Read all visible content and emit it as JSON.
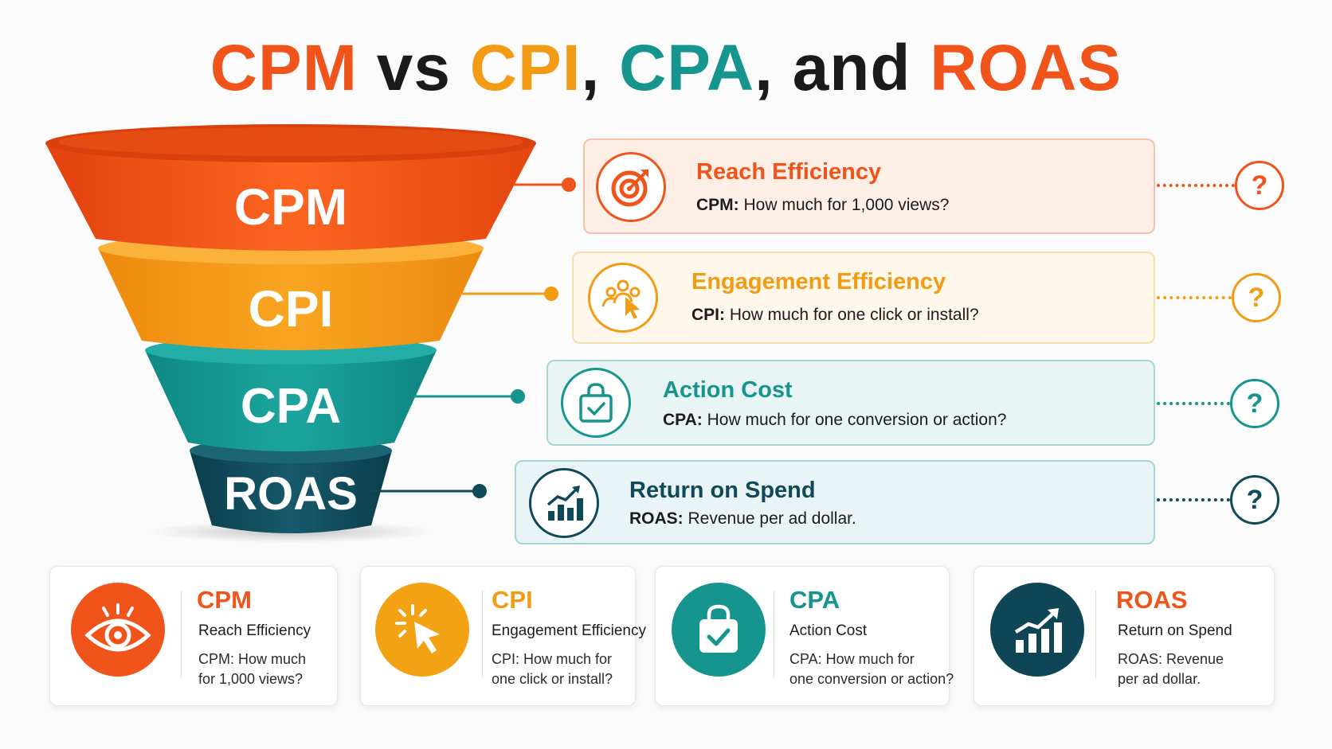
{
  "title": {
    "part1": "CPM",
    "part2": " vs ",
    "part3": "CPI",
    "part4": ", ",
    "part5": "CPA",
    "part6": ", and ",
    "part7": "ROAS"
  },
  "colors": {
    "cpm": "#f0541a",
    "cpi": "#f29b14",
    "cpa": "#16958f",
    "roas": "#104958",
    "roas_title": "#f0541a",
    "dark": "#1a1a1a"
  },
  "funnel": {
    "levels": [
      {
        "label": "CPM"
      },
      {
        "label": "CPI"
      },
      {
        "label": "CPA"
      },
      {
        "label": "ROAS"
      }
    ]
  },
  "cards": [
    {
      "icon": "target-icon",
      "title": "Reach Efficiency",
      "abbr": "CPM:",
      "desc": " How much for 1,000 views?",
      "q": "?"
    },
    {
      "icon": "users-click-icon",
      "title": "Engagement Efficiency",
      "abbr": "CPI:",
      "desc": " How much for one click or install?",
      "q": "?"
    },
    {
      "icon": "shopping-bag-icon",
      "title": "Action Cost",
      "abbr": "CPA:",
      "desc": " How much for one conversion or action?",
      "q": "?"
    },
    {
      "icon": "growth-chart-icon",
      "title": "Return on Spend",
      "abbr": "ROAS:",
      "desc": " Revenue per ad dollar.",
      "q": "?"
    }
  ],
  "bottom_cards": [
    {
      "icon": "eye-icon",
      "abbr": "CPM",
      "name": "Reach Efficiency",
      "desc_lines": [
        "CPM: How much",
        "for 1,000 views?"
      ]
    },
    {
      "icon": "cursor-click-icon",
      "abbr": "CPI",
      "name": "Engagement Efficiency",
      "desc_lines": [
        "CPI: How much for",
        "one click or install?"
      ]
    },
    {
      "icon": "shopping-bag-icon",
      "abbr": "CPA",
      "name": "Action Cost",
      "desc_lines": [
        "CPA: How much for",
        "one conversion or action?"
      ]
    },
    {
      "icon": "growth-chart-icon",
      "abbr": "ROAS",
      "name": "Return on Spend",
      "desc_lines": [
        "ROAS: Revenue",
        "per ad dollar."
      ]
    }
  ]
}
